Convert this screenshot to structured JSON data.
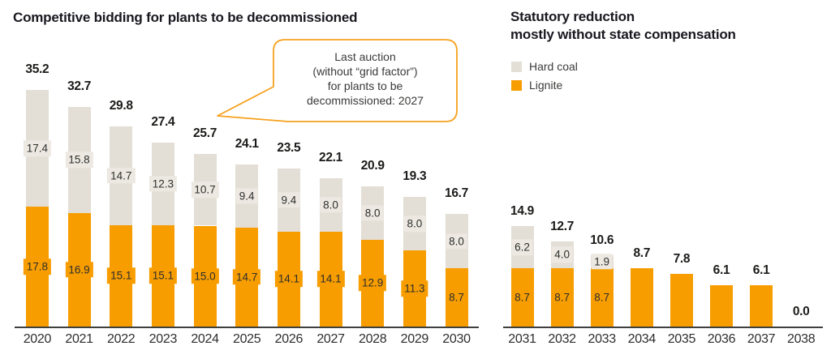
{
  "left_chart": {
    "title": "Competitive bidding for plants to be decommissioned"
  },
  "right_chart": {
    "title_line1": "Statutory reduction",
    "title_line2": "mostly without state compensation"
  },
  "legend": {
    "items": [
      {
        "label": "Hard coal",
        "color": "#E3DED6"
      },
      {
        "label": "Lignite",
        "color": "#F79D00"
      }
    ]
  },
  "callout": {
    "lines": [
      "Last auction",
      "(without “grid factor”)",
      "for plants to be",
      "decommissioned: 2027"
    ],
    "border_color": "#F7A11E"
  },
  "colors": {
    "lignite": "#F79D00",
    "hard_coal": "#E3DED6",
    "hard_coal_label_bg": "#EDE9E2",
    "axis": "#3f3f3e"
  },
  "chart_data": [
    {
      "type": "bar",
      "stacked": true,
      "title": "Competitive bidding for plants to be decommissioned",
      "legend_position": "top-right",
      "grid": false,
      "categories": [
        "2020",
        "2021",
        "2022",
        "2023",
        "2024",
        "2025",
        "2026",
        "2027",
        "2028",
        "2029",
        "2030"
      ],
      "series": [
        {
          "name": "Lignite",
          "color": "#F79D00",
          "label_bg": "#F79D00",
          "values": [
            17.8,
            16.9,
            15.1,
            15.1,
            15.0,
            14.7,
            14.1,
            14.1,
            12.9,
            11.3,
            8.7
          ],
          "labels": [
            "17.8",
            "16.9",
            "15.1",
            "15.1",
            "15.0",
            "14.7",
            "14.1",
            "14.1",
            "12.9",
            "11.3",
            "8.7"
          ]
        },
        {
          "name": "Hard coal",
          "color": "#E3DED6",
          "label_bg": "#EDE9E2",
          "values": [
            17.4,
            15.8,
            14.7,
            12.3,
            10.7,
            9.4,
            9.4,
            8.0,
            8.0,
            8.0,
            8.0
          ],
          "labels": [
            "17.4",
            "15.8",
            "14.7",
            "12.3",
            "10.7",
            "9.4",
            "9.4",
            "8.0",
            "8.0",
            "8.0",
            "8.0"
          ]
        }
      ],
      "totals": [
        "35.2",
        "32.7",
        "29.8",
        "27.4",
        "25.7",
        "24.1",
        "23.5",
        "22.1",
        "20.9",
        "19.3",
        "16.7"
      ],
      "annotation": "Last auction (without “grid factor”) for plants to be decommissioned: 2027"
    },
    {
      "type": "bar",
      "stacked": true,
      "title": "Statutory reduction mostly without state compensation",
      "grid": false,
      "categories": [
        "2031",
        "2032",
        "2033",
        "2034",
        "2035",
        "2036",
        "2037",
        "2038"
      ],
      "series": [
        {
          "name": "Lignite",
          "color": "#F79D00",
          "label_bg": "#F79D00",
          "values": [
            8.7,
            8.7,
            8.7,
            8.7,
            7.8,
            6.1,
            6.1,
            0
          ],
          "labels": [
            "8.7",
            "8.7",
            "8.7",
            null,
            null,
            null,
            null,
            null
          ]
        },
        {
          "name": "Hard coal",
          "color": "#E3DED6",
          "label_bg": "#EDE9E2",
          "values": [
            6.2,
            4.0,
            1.9,
            0,
            0,
            0,
            0,
            0
          ],
          "labels": [
            "6.2",
            "4.0",
            "1.9",
            null,
            null,
            null,
            null,
            null
          ]
        }
      ],
      "totals": [
        "14.9",
        "12.7",
        "10.6",
        "8.7",
        "7.8",
        "6.1",
        "6.1",
        "0.0"
      ]
    }
  ]
}
